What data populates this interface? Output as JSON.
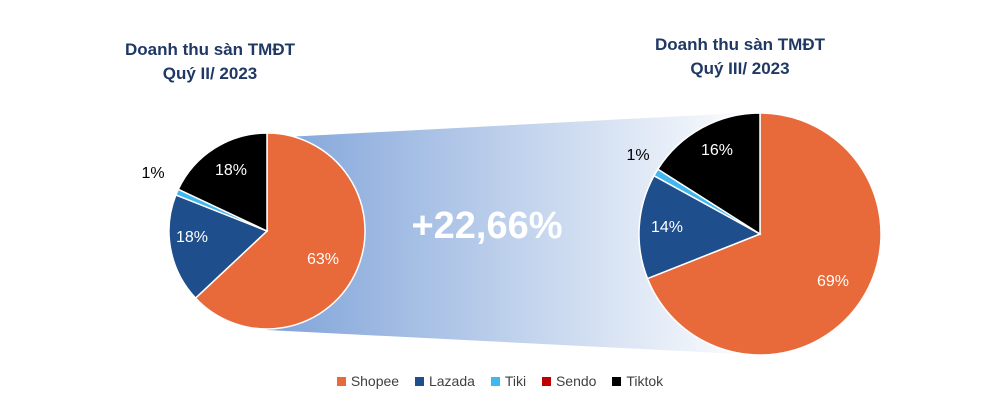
{
  "colors": {
    "Shopee": "#e8693a",
    "Lazada": "#1f4e8c",
    "Tiki": "#3fb8f0",
    "Sendo": "#c00000",
    "Tiktok": "#000000"
  },
  "growth_label": "+22,66%",
  "chart_data": [
    {
      "type": "pie",
      "title": [
        "Doanh thu sàn TMĐT",
        "Quý II/ 2023"
      ],
      "labels": [
        "Shopee",
        "Lazada",
        "Tiki",
        "Sendo",
        "Tiktok"
      ],
      "values": [
        63,
        18,
        1,
        0,
        18
      ],
      "data_labels": [
        "63%",
        "18%",
        "1%",
        "",
        "18%"
      ]
    },
    {
      "type": "pie",
      "title": [
        "Doanh thu sàn TMĐT",
        "Quý III/ 2023"
      ],
      "labels": [
        "Shopee",
        "Lazada",
        "Tiki",
        "Sendo",
        "Tiktok"
      ],
      "values": [
        69,
        14,
        1,
        0,
        16
      ],
      "data_labels": [
        "69%",
        "14%",
        "1%",
        "",
        "16%"
      ]
    }
  ],
  "legend": [
    "Shopee",
    "Lazada",
    "Tiki",
    "Sendo",
    "Tiktok"
  ]
}
